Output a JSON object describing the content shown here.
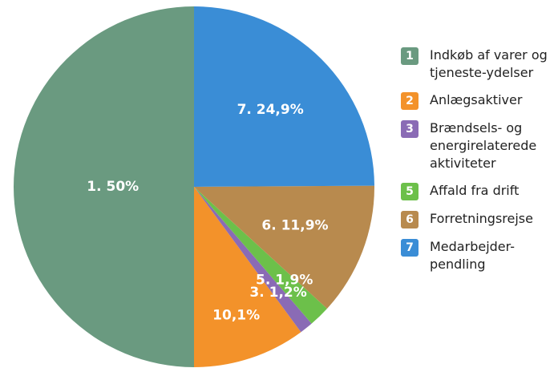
{
  "chart_data": {
    "type": "pie",
    "categories": [
      "Indkøb af varer og tjeneste-ydelser",
      "Anlægsaktiver",
      "Brændsels- og energirelaterede aktiviteter",
      "Affald fra drift",
      "Forretningsrejse",
      "Medarbejder-pendling"
    ],
    "category_numbers": [
      "1",
      "2",
      "3",
      "5",
      "6",
      "7"
    ],
    "values": [
      50,
      10.1,
      1.2,
      1.9,
      11.9,
      24.9
    ],
    "value_labels": [
      "1. 50%",
      "10,1%",
      "3. 1,2%",
      "5. 1,9%",
      "6. 11,9%",
      "7. 24,9%"
    ],
    "colors": [
      "#6a9a80",
      "#f3922a",
      "#8a6bb5",
      "#6cc04a",
      "#b88a4e",
      "#3a8dd6"
    ],
    "startangle": 90,
    "counterclock": true
  }
}
